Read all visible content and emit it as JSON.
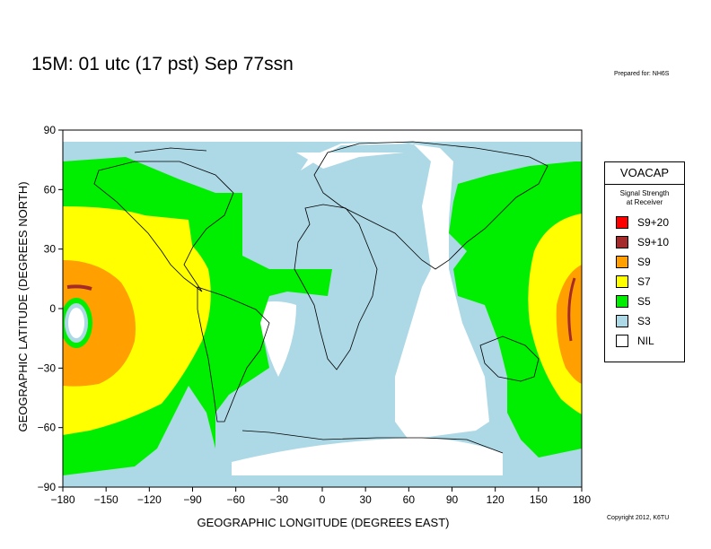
{
  "header": {
    "title": "15M:  01 utc (17 pst) Sep 77ssn",
    "prepared": "Prepared for: NH6S",
    "copyright": "Copyright 2012, K6TU"
  },
  "axes": {
    "xlabel": "GEOGRAPHIC LONGITUDE (DEGREES EAST)",
    "ylabel": "GEOGRAPHIC LATITUDE (DEGREES NORTH)",
    "xticks": [
      "−180",
      "−150",
      "−120",
      "−90",
      "−60",
      "−30",
      "0",
      "30",
      "60",
      "90",
      "120",
      "150",
      "180"
    ],
    "yticks": [
      "90",
      "60",
      "30",
      "0",
      "−30",
      "−60",
      "−90"
    ],
    "xlim": [
      -180,
      180
    ],
    "ylim": [
      -90,
      90
    ]
  },
  "legend": {
    "title": "VOACAP",
    "subtitle_line1": "Signal Strength",
    "subtitle_line2": "at Receiver",
    "items": [
      {
        "label": "S9+20",
        "color": "#ff0000"
      },
      {
        "label": "S9+10",
        "color": "#a52a2a"
      },
      {
        "label": "S9",
        "color": "#ff9f00"
      },
      {
        "label": "S7",
        "color": "#ffff00"
      },
      {
        "label": "S5",
        "color": "#00ee00"
      },
      {
        "label": "S3",
        "color": "#add8e6"
      },
      {
        "label": "NIL",
        "color": "#ffffff"
      }
    ]
  }
}
